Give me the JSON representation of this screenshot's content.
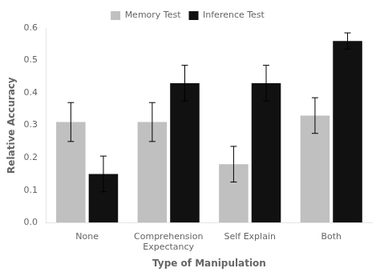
{
  "chart_data": {
    "type": "bar",
    "categories": [
      "None",
      "Comprehension\nExpectancy",
      "Self Explain",
      "Both"
    ],
    "series": [
      {
        "name": "Memory Test",
        "color": "#c0c0c0",
        "values": [
          0.31,
          0.31,
          0.18,
          0.33
        ],
        "errors": [
          0.06,
          0.06,
          0.055,
          0.055
        ]
      },
      {
        "name": "Inference Test",
        "color": "#111111",
        "values": [
          0.15,
          0.43,
          0.43,
          0.56
        ],
        "errors": [
          0.055,
          0.055,
          0.055,
          0.025
        ]
      }
    ],
    "xlabel": "Type of Manipulation",
    "ylabel": "Relative Accuracy",
    "ylim": [
      0,
      0.6
    ],
    "yticks": [
      {
        "value": 0,
        "label": "0.0"
      },
      0.1,
      0.2,
      0.3,
      0.4,
      0.5,
      0.6
    ],
    "grid": false,
    "legend": "top"
  }
}
